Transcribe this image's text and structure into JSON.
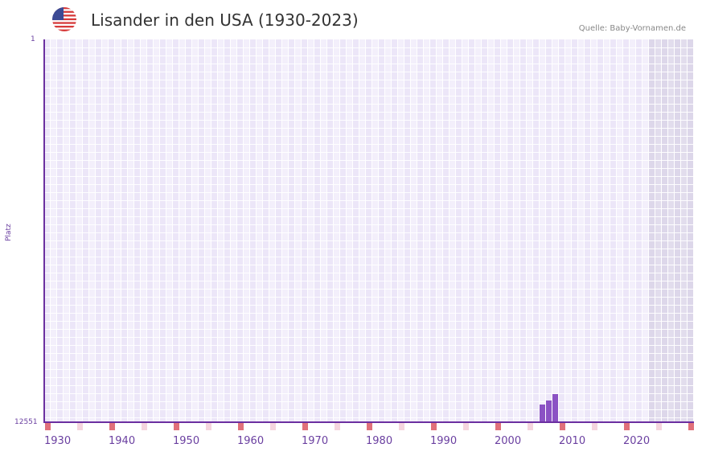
{
  "header": {
    "title": "Lisander in den USA (1930-2023)",
    "source": "Quelle: Baby-Vornamen.de",
    "flag_icon": "us-flag-icon"
  },
  "colors": {
    "bar": "#8b52c4",
    "axis": "#6b2fa0",
    "decade_marker": "#e0707a",
    "half_decade_marker": "#f5d5de",
    "grid_light": "#f3effb",
    "grid_dark": "#ece6f8",
    "future_shade": "#e2dded"
  },
  "chart_data": {
    "type": "bar",
    "title": "Lisander in den USA (1930-2023)",
    "xlabel": "",
    "ylabel": "Platz",
    "y_inverted": true,
    "ylim": [
      12551,
      1
    ],
    "xlim": [
      1930,
      2030
    ],
    "x_ticks": [
      "1930",
      "1940",
      "1950",
      "1960",
      "1970",
      "1980",
      "1990",
      "2000",
      "2010",
      "2020"
    ],
    "y_ticks": [
      "1",
      "12551"
    ],
    "categories": [
      "2007",
      "2008",
      "2009"
    ],
    "values": [
      11970,
      11840,
      11630
    ],
    "grid": true,
    "shaded_future_from": 2024,
    "legend": null
  },
  "axis": {
    "y_top": "1",
    "y_bottom": "12551",
    "y_title": "Platz"
  }
}
